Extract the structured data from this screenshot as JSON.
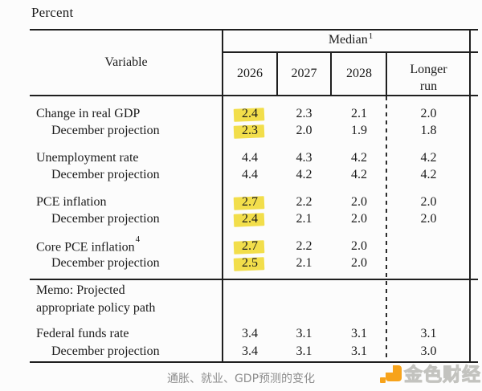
{
  "page": {
    "unit_label": "Percent",
    "caption": "通胀、就业、GDP预测的变化",
    "brand": {
      "name": "金色财经"
    }
  },
  "colors": {
    "highlight_yellow": "#f2de4b",
    "brand_orange": "#f7a31b",
    "rule_black": "#1f1f1f",
    "caption_gray": "#8e8e8e"
  },
  "table": {
    "header": {
      "variable_label": "Variable",
      "median_label": "Median",
      "median_sup": "1",
      "years": [
        "2026",
        "2027",
        "2028"
      ],
      "longer_run_label": "Longer\nrun"
    },
    "memo": {
      "line1": "Memo:  Projected",
      "line2": "appropriate policy path"
    },
    "rows": [
      {
        "section": "main",
        "label": "Change in real GDP",
        "sup": "",
        "indent": false,
        "group_start": false,
        "values": [
          "2.4",
          "2.3",
          "2.1",
          "2.0"
        ],
        "highlight": [
          true,
          false,
          false,
          false
        ]
      },
      {
        "section": "main",
        "label": "December projection",
        "sup": "",
        "indent": true,
        "group_start": false,
        "values": [
          "2.3",
          "2.0",
          "1.9",
          "1.8"
        ],
        "highlight": [
          true,
          false,
          false,
          false
        ]
      },
      {
        "section": "main",
        "label": "Unemployment rate",
        "sup": "",
        "indent": false,
        "group_start": true,
        "values": [
          "4.4",
          "4.3",
          "4.2",
          "4.2"
        ],
        "highlight": [
          false,
          false,
          false,
          false
        ]
      },
      {
        "section": "main",
        "label": "December projection",
        "sup": "",
        "indent": true,
        "group_start": false,
        "values": [
          "4.4",
          "4.2",
          "4.2",
          "4.2"
        ],
        "highlight": [
          false,
          false,
          false,
          false
        ]
      },
      {
        "section": "main",
        "label": "PCE inflation",
        "sup": "",
        "indent": false,
        "group_start": true,
        "values": [
          "2.7",
          "2.2",
          "2.0",
          "2.0"
        ],
        "highlight": [
          true,
          false,
          false,
          false
        ]
      },
      {
        "section": "main",
        "label": "December projection",
        "sup": "",
        "indent": true,
        "group_start": false,
        "values": [
          "2.4",
          "2.1",
          "2.0",
          "2.0"
        ],
        "highlight": [
          true,
          false,
          false,
          false
        ]
      },
      {
        "section": "main",
        "label": "Core PCE inflation",
        "sup": "4",
        "indent": false,
        "group_start": true,
        "values": [
          "2.7",
          "2.2",
          "2.0",
          ""
        ],
        "highlight": [
          true,
          false,
          false,
          false
        ]
      },
      {
        "section": "main",
        "label": "December projection",
        "sup": "",
        "indent": true,
        "group_start": false,
        "values": [
          "2.5",
          "2.1",
          "2.0",
          ""
        ],
        "highlight": [
          true,
          false,
          false,
          false
        ]
      },
      {
        "section": "memo",
        "label": "Federal funds rate",
        "sup": "",
        "indent": false,
        "group_start": false,
        "values": [
          "3.4",
          "3.1",
          "3.1",
          "3.1"
        ],
        "highlight": [
          false,
          false,
          false,
          false
        ]
      },
      {
        "section": "memo",
        "label": "December projection",
        "sup": "",
        "indent": true,
        "group_start": false,
        "values": [
          "3.4",
          "3.1",
          "3.1",
          "3.0"
        ],
        "highlight": [
          false,
          false,
          false,
          false
        ]
      }
    ]
  }
}
